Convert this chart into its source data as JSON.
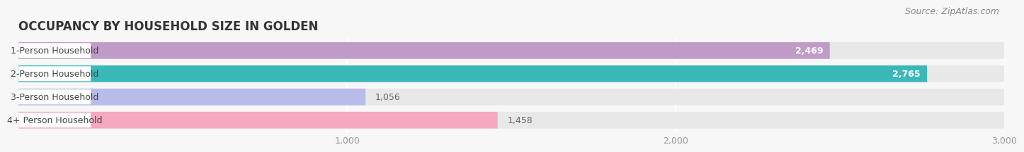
{
  "title": "OCCUPANCY BY HOUSEHOLD SIZE IN GOLDEN",
  "source": "Source: ZipAtlas.com",
  "categories": [
    "1-Person Household",
    "2-Person Household",
    "3-Person Household",
    "4+ Person Household"
  ],
  "values": [
    2469,
    2765,
    1056,
    1458
  ],
  "bar_colors": [
    "#c09bc8",
    "#3ab8b8",
    "#b8bce8",
    "#f5a8c0"
  ],
  "xlim_min": 0,
  "xlim_max": 3000,
  "xticks": [
    1000,
    2000,
    3000
  ],
  "xtick_labels": [
    "1,000",
    "2,000",
    "3,000"
  ],
  "value_labels": [
    "2,469",
    "2,765",
    "1,056",
    "1,458"
  ],
  "background_color": "#f7f7f7",
  "bar_bg_color": "#e8e8e8",
  "title_fontsize": 12,
  "label_fontsize": 9,
  "value_fontsize": 9,
  "source_fontsize": 9,
  "label_color": "#444444",
  "value_color_inside": "#ffffff",
  "value_color_outside": "#666666",
  "grid_color": "#ffffff",
  "tick_color": "#999999"
}
